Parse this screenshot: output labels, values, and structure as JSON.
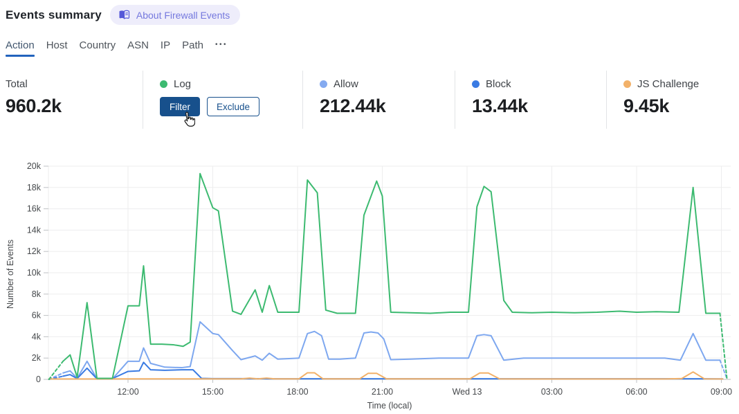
{
  "header": {
    "title": "Events summary",
    "badge_label": "About Firewall Events",
    "badge_bg": "#eeedfb",
    "badge_color": "#7478de",
    "book_icon_color": "#5558d8"
  },
  "tabs": {
    "items": [
      {
        "label": "Action",
        "active": true
      },
      {
        "label": "Host",
        "active": false
      },
      {
        "label": "Country",
        "active": false
      },
      {
        "label": "ASN",
        "active": false
      },
      {
        "label": "IP",
        "active": false
      },
      {
        "label": "Path",
        "active": false
      }
    ],
    "more_label": "•••",
    "active_underline_color": "#2263bd"
  },
  "stats": [
    {
      "id": "total",
      "label": "Total",
      "value": "960.2k",
      "dot": null
    },
    {
      "id": "log",
      "label": "Log",
      "dot": "#3cba70",
      "hovered": true,
      "buttons": [
        {
          "label": "Filter",
          "style": "primary"
        },
        {
          "label": "Exclude",
          "style": "outline"
        }
      ]
    },
    {
      "id": "allow",
      "label": "Allow",
      "value": "212.44k",
      "dot": "#84aaf0"
    },
    {
      "id": "block",
      "label": "Block",
      "value": "13.44k",
      "dot": "#3a7be3"
    },
    {
      "id": "js-challenge",
      "label": "JS Challenge",
      "value": "9.45k",
      "dot": "#f2b169"
    }
  ],
  "buttons_color": "#17508c",
  "chart_data": {
    "type": "line",
    "title": "",
    "xlabel": "Time (local)",
    "ylabel": "Number of Events",
    "values_unit": "thousands of events",
    "ylim": [
      0,
      20000
    ],
    "grid": true,
    "legend_position": "none (legend shown as stat cards above)",
    "y_tick_values": [
      0,
      2,
      4,
      6,
      8,
      10,
      12,
      14,
      16,
      18,
      20
    ],
    "y_tick_labels": [
      "0",
      "2k",
      "4k",
      "6k",
      "8k",
      "10k",
      "12k",
      "14k",
      "16k",
      "18k",
      "20k"
    ],
    "x_ticks": [
      {
        "t": 12,
        "label": "12:00"
      },
      {
        "t": 15,
        "label": "15:00"
      },
      {
        "t": 18,
        "label": "18:00"
      },
      {
        "t": 21,
        "label": "21:00"
      },
      {
        "t": 24,
        "label": "Wed 13"
      },
      {
        "t": 27,
        "label": "03:00"
      },
      {
        "t": 30,
        "label": "06:00"
      },
      {
        "t": 33,
        "label": "09:00"
      }
    ],
    "x_range_hours": [
      9.18,
      33.33
    ],
    "series": [
      {
        "name": "Log",
        "color": "#3cba70",
        "dashed_head": true,
        "dashed_tail": true,
        "points": [
          [
            9.2,
            0
          ],
          [
            9.7,
            1.7
          ],
          [
            9.95,
            2.3
          ],
          [
            10.2,
            0.2
          ],
          [
            10.55,
            7.2
          ],
          [
            10.9,
            0.1
          ],
          [
            11.45,
            0.1
          ],
          [
            12.0,
            6.9
          ],
          [
            12.4,
            6.9
          ],
          [
            12.55,
            10.65
          ],
          [
            12.8,
            3.3
          ],
          [
            13.2,
            3.3
          ],
          [
            13.6,
            3.25
          ],
          [
            13.95,
            3.1
          ],
          [
            14.2,
            3.5
          ],
          [
            14.55,
            19.3
          ],
          [
            15.0,
            16.1
          ],
          [
            15.2,
            15.8
          ],
          [
            15.7,
            6.4
          ],
          [
            16.0,
            6.1
          ],
          [
            16.5,
            8.4
          ],
          [
            16.75,
            6.3
          ],
          [
            17.0,
            8.8
          ],
          [
            17.3,
            6.3
          ],
          [
            17.7,
            6.3
          ],
          [
            18.05,
            6.3
          ],
          [
            18.35,
            18.7
          ],
          [
            18.7,
            17.5
          ],
          [
            19.0,
            6.5
          ],
          [
            19.4,
            6.2
          ],
          [
            20.05,
            6.2
          ],
          [
            20.35,
            15.4
          ],
          [
            20.8,
            18.6
          ],
          [
            21.0,
            17.2
          ],
          [
            21.3,
            6.3
          ],
          [
            22.0,
            6.25
          ],
          [
            22.7,
            6.2
          ],
          [
            23.4,
            6.3
          ],
          [
            24.05,
            6.3
          ],
          [
            24.35,
            16.2
          ],
          [
            24.6,
            18.1
          ],
          [
            24.85,
            17.6
          ],
          [
            25.3,
            7.4
          ],
          [
            25.6,
            6.3
          ],
          [
            26.3,
            6.25
          ],
          [
            27.0,
            6.3
          ],
          [
            27.8,
            6.25
          ],
          [
            28.6,
            6.3
          ],
          [
            29.4,
            6.4
          ],
          [
            30.0,
            6.3
          ],
          [
            30.7,
            6.35
          ],
          [
            31.5,
            6.3
          ],
          [
            32.0,
            18.0
          ],
          [
            32.45,
            6.2
          ],
          [
            32.95,
            6.2
          ],
          [
            33.2,
            0
          ]
        ]
      },
      {
        "name": "Allow",
        "color": "#7da7ef",
        "dashed_head": true,
        "dashed_tail": true,
        "points": [
          [
            9.2,
            0
          ],
          [
            9.7,
            0.6
          ],
          [
            9.95,
            0.8
          ],
          [
            10.2,
            0.1
          ],
          [
            10.55,
            1.7
          ],
          [
            10.9,
            0.05
          ],
          [
            11.45,
            0.05
          ],
          [
            12.0,
            1.7
          ],
          [
            12.4,
            1.7
          ],
          [
            12.55,
            2.95
          ],
          [
            12.8,
            1.5
          ],
          [
            13.3,
            1.15
          ],
          [
            13.9,
            1.1
          ],
          [
            14.2,
            1.2
          ],
          [
            14.55,
            5.4
          ],
          [
            15.0,
            4.3
          ],
          [
            15.2,
            4.2
          ],
          [
            15.7,
            2.7
          ],
          [
            16.0,
            1.85
          ],
          [
            16.5,
            2.2
          ],
          [
            16.75,
            1.8
          ],
          [
            17.0,
            2.45
          ],
          [
            17.3,
            1.9
          ],
          [
            17.7,
            1.95
          ],
          [
            18.05,
            2.0
          ],
          [
            18.35,
            4.3
          ],
          [
            18.6,
            4.5
          ],
          [
            18.85,
            4.1
          ],
          [
            19.1,
            1.9
          ],
          [
            19.5,
            1.9
          ],
          [
            20.05,
            2.0
          ],
          [
            20.35,
            4.35
          ],
          [
            20.6,
            4.45
          ],
          [
            20.85,
            4.35
          ],
          [
            21.05,
            3.8
          ],
          [
            21.3,
            1.85
          ],
          [
            22.0,
            1.9
          ],
          [
            23.0,
            2.0
          ],
          [
            24.05,
            2.0
          ],
          [
            24.35,
            4.1
          ],
          [
            24.6,
            4.2
          ],
          [
            24.85,
            4.1
          ],
          [
            25.3,
            1.8
          ],
          [
            26.0,
            2.0
          ],
          [
            27.0,
            2.0
          ],
          [
            28.0,
            2.0
          ],
          [
            29.0,
            2.0
          ],
          [
            30.0,
            2.0
          ],
          [
            31.0,
            2.0
          ],
          [
            31.55,
            1.8
          ],
          [
            32.0,
            4.3
          ],
          [
            32.45,
            1.8
          ],
          [
            32.95,
            1.8
          ],
          [
            33.2,
            0.05
          ]
        ]
      },
      {
        "name": "Block",
        "color": "#3a7be3",
        "dashed_head": true,
        "dashed_tail": false,
        "points": [
          [
            9.2,
            0
          ],
          [
            9.7,
            0.3
          ],
          [
            9.95,
            0.45
          ],
          [
            10.2,
            0.08
          ],
          [
            10.55,
            1.05
          ],
          [
            10.9,
            0.05
          ],
          [
            11.45,
            0.08
          ],
          [
            12.0,
            0.75
          ],
          [
            12.4,
            0.8
          ],
          [
            12.55,
            1.6
          ],
          [
            12.8,
            0.9
          ],
          [
            13.3,
            0.85
          ],
          [
            13.9,
            0.9
          ],
          [
            14.3,
            0.9
          ],
          [
            14.6,
            0.1
          ],
          [
            15.0,
            0.07
          ],
          [
            16.0,
            0.07
          ],
          [
            17.0,
            0.06
          ],
          [
            18.0,
            0.06
          ],
          [
            19.0,
            0.06
          ],
          [
            20.0,
            0.06
          ],
          [
            21.0,
            0.06
          ],
          [
            22.0,
            0.06
          ],
          [
            23.0,
            0.06
          ],
          [
            24.0,
            0.06
          ],
          [
            25.0,
            0.06
          ],
          [
            26.0,
            0.06
          ],
          [
            27.0,
            0.06
          ],
          [
            28.0,
            0.06
          ],
          [
            29.0,
            0.06
          ],
          [
            30.0,
            0.06
          ],
          [
            31.0,
            0.06
          ],
          [
            32.0,
            0.06
          ],
          [
            33.05,
            0.05
          ]
        ]
      },
      {
        "name": "JS Challenge",
        "color": "#f2b169",
        "dashed_head": false,
        "dashed_tail": false,
        "points": [
          [
            9.2,
            0.04
          ],
          [
            10.0,
            0.04
          ],
          [
            11.0,
            0.04
          ],
          [
            12.0,
            0.05
          ],
          [
            13.0,
            0.05
          ],
          [
            14.0,
            0.05
          ],
          [
            15.0,
            0.05
          ],
          [
            16.0,
            0.05
          ],
          [
            16.3,
            0.12
          ],
          [
            16.6,
            0.05
          ],
          [
            16.9,
            0.12
          ],
          [
            17.2,
            0.05
          ],
          [
            18.05,
            0.05
          ],
          [
            18.35,
            0.62
          ],
          [
            18.6,
            0.62
          ],
          [
            18.9,
            0.05
          ],
          [
            19.5,
            0.05
          ],
          [
            20.2,
            0.05
          ],
          [
            20.5,
            0.57
          ],
          [
            20.8,
            0.57
          ],
          [
            21.15,
            0.05
          ],
          [
            22.0,
            0.05
          ],
          [
            23.0,
            0.05
          ],
          [
            24.1,
            0.05
          ],
          [
            24.45,
            0.6
          ],
          [
            24.75,
            0.6
          ],
          [
            25.15,
            0.05
          ],
          [
            26.0,
            0.04
          ],
          [
            27.0,
            0.04
          ],
          [
            28.0,
            0.04
          ],
          [
            29.0,
            0.04
          ],
          [
            30.0,
            0.04
          ],
          [
            31.0,
            0.04
          ],
          [
            31.6,
            0.08
          ],
          [
            32.0,
            0.7
          ],
          [
            32.4,
            0.05
          ],
          [
            33.05,
            0.04
          ]
        ]
      }
    ],
    "axis_colors": {
      "grid": "#ededee",
      "zero_line": "#c6c8ca",
      "tick": "#bfc2c4",
      "label": "#45484b"
    }
  }
}
